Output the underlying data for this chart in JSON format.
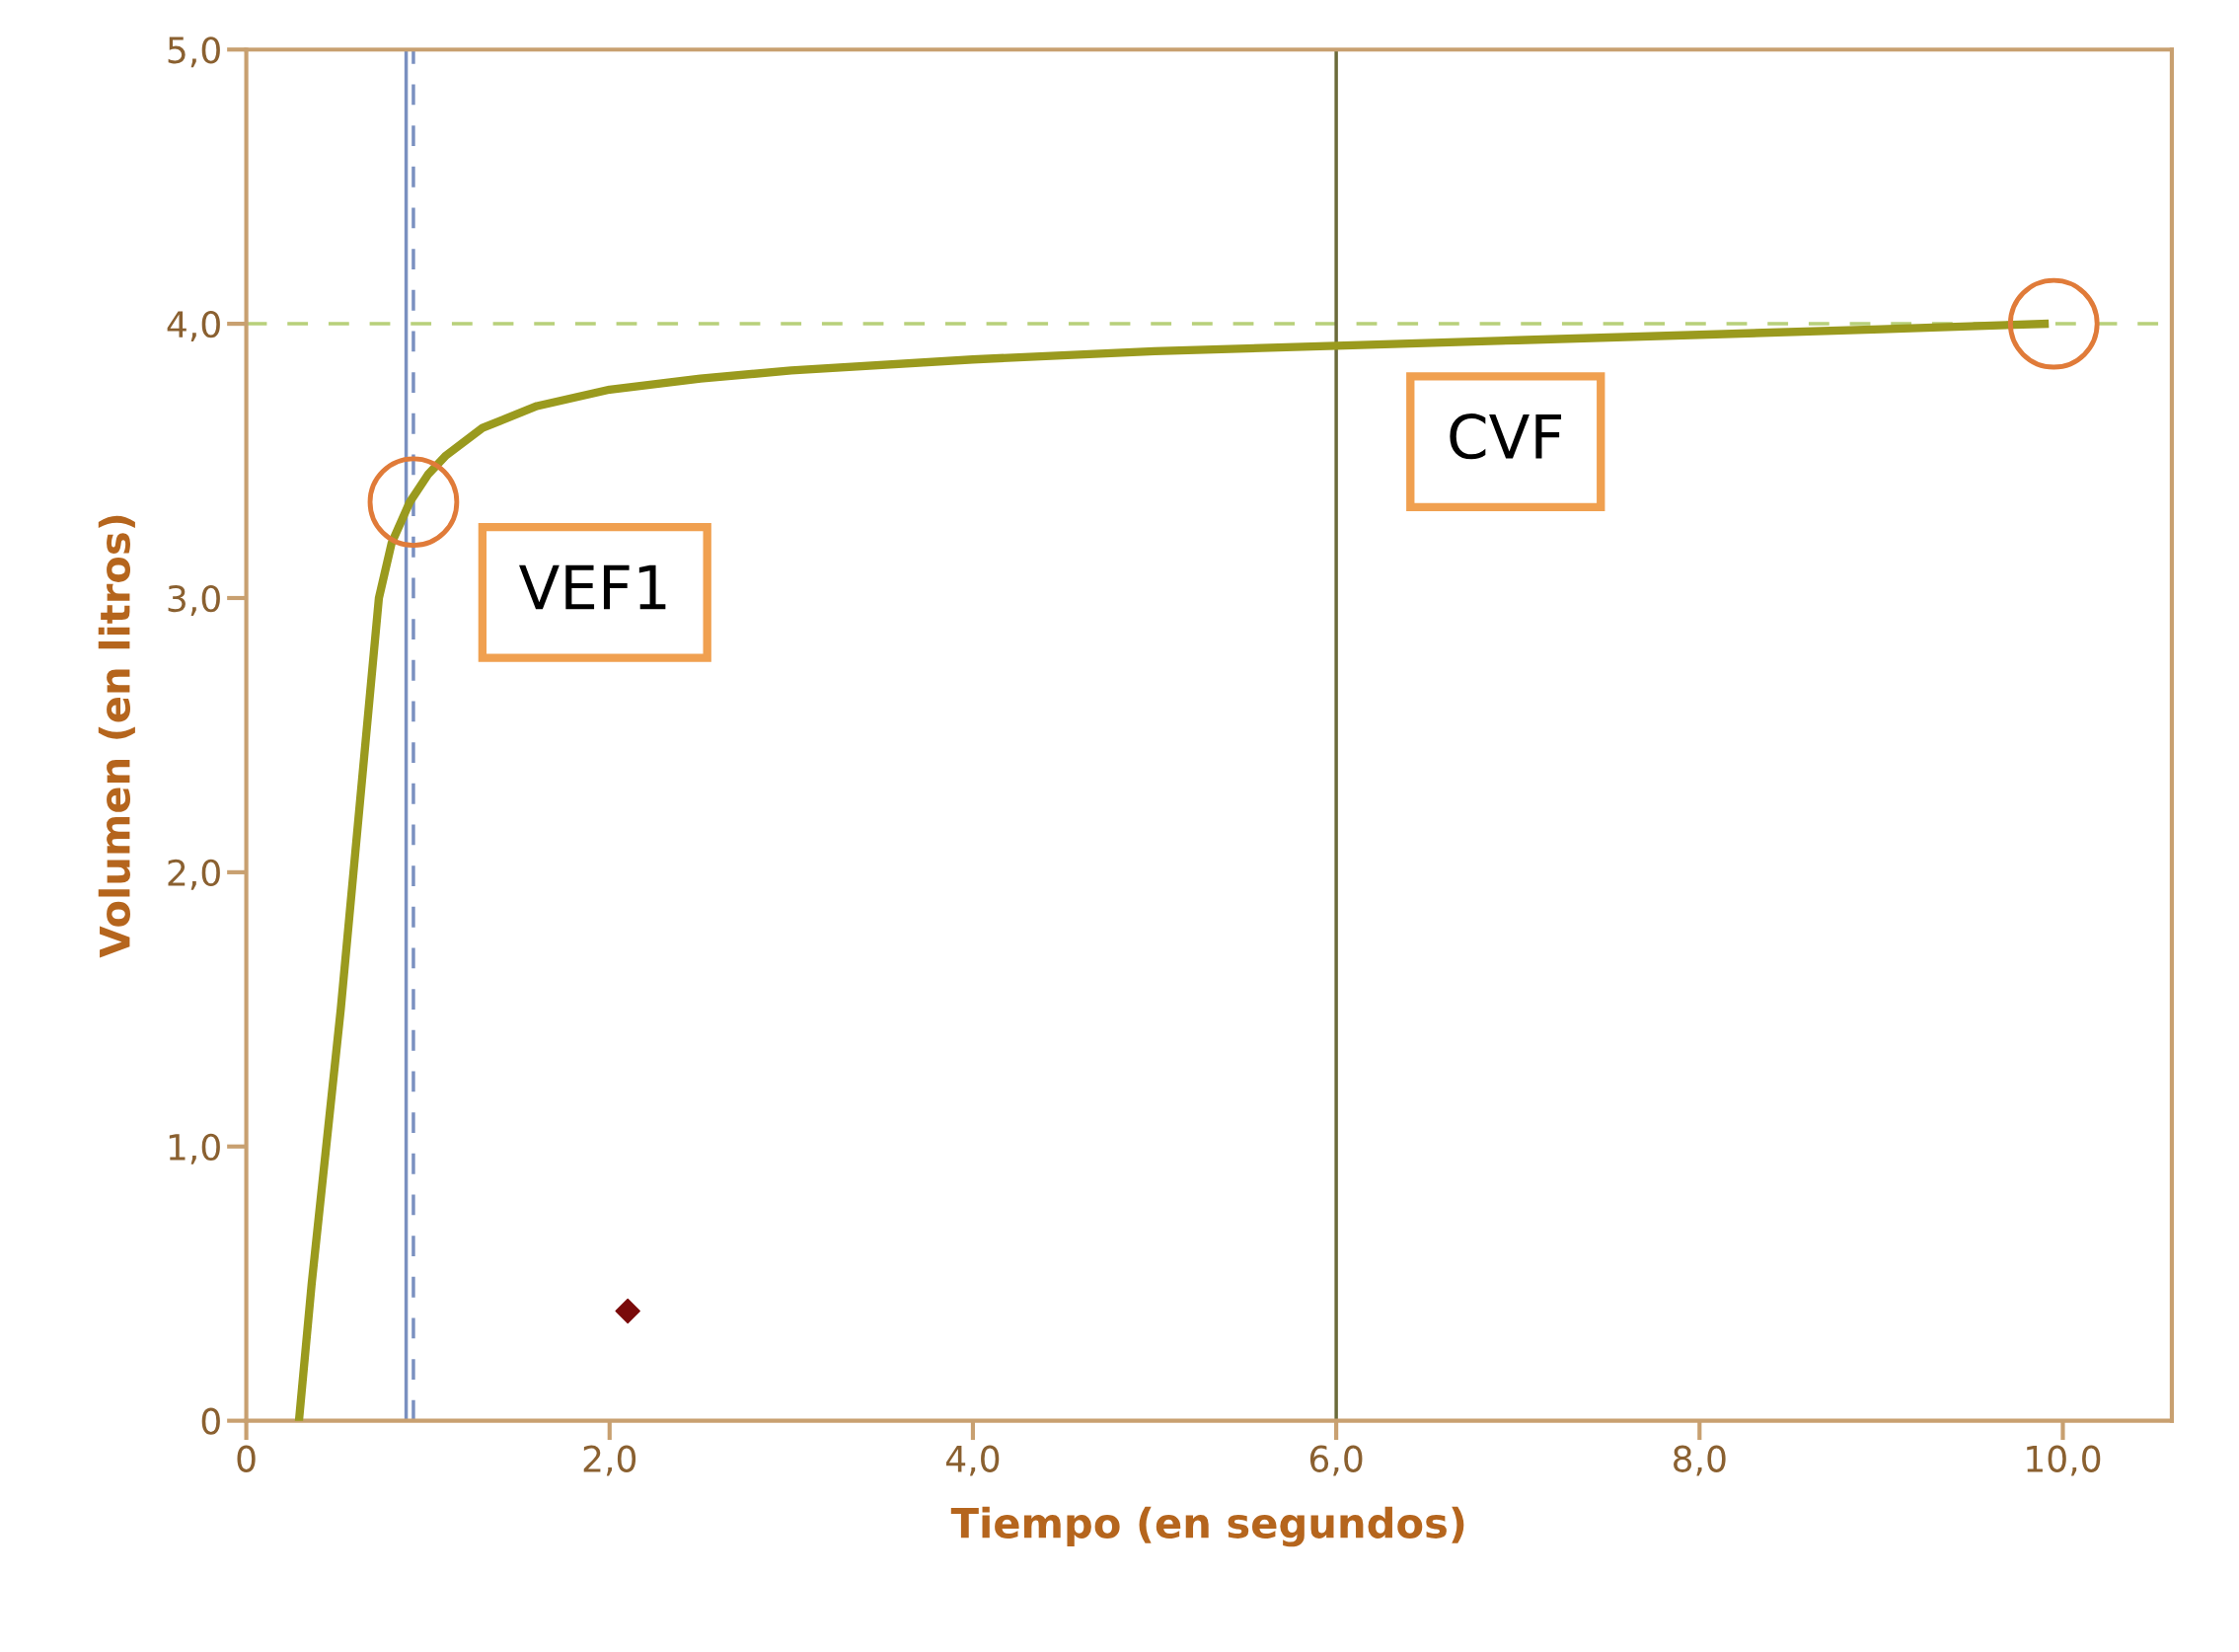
{
  "chart_data": {
    "type": "line",
    "xlabel": "Tiempo (en segundos)",
    "ylabel": "Volumen (en litros)",
    "xlim": [
      0,
      10.6
    ],
    "ylim": [
      0,
      5.0
    ],
    "xticks": [
      0,
      {
        "value": 2,
        "label": "2,0"
      },
      {
        "value": 4,
        "label": "4,0"
      },
      {
        "value": 6,
        "label": "6,0"
      },
      {
        "value": 8,
        "label": "8,0"
      },
      {
        "value": 10,
        "label": "10,0"
      }
    ],
    "yticks": [
      0,
      {
        "value": 1,
        "label": "1,0"
      },
      {
        "value": 2,
        "label": "2,0"
      },
      {
        "value": 3,
        "label": "3,0"
      },
      {
        "value": 4,
        "label": "4,0"
      },
      {
        "value": 5,
        "label": "5,0"
      }
    ],
    "grid": false,
    "legend": false,
    "series": [
      {
        "color": "#9a9a1e",
        "marker": "none",
        "line_style": "solid",
        "x": [
          0.29,
          0.36,
          0.44,
          0.52,
          0.59,
          0.66,
          0.73,
          0.8,
          0.9,
          1.0,
          1.1,
          1.3,
          1.6,
          2.0,
          2.5,
          3.0,
          4.0,
          5.0,
          6.0,
          7.0,
          8.0,
          9.0,
          9.9
        ],
        "values": [
          0,
          0.5,
          1.0,
          1.5,
          2.0,
          2.5,
          3.0,
          3.2,
          3.35,
          3.45,
          3.52,
          3.62,
          3.7,
          3.76,
          3.8,
          3.83,
          3.87,
          3.9,
          3.92,
          3.94,
          3.96,
          3.98,
          4.0
        ]
      },
      {
        "type": "scatter",
        "color": "#e07b39",
        "marker": "circle",
        "x": [
          0.92,
          9.95
        ],
        "values": [
          3.35,
          4.0
        ]
      },
      {
        "type": "scatter",
        "color": "#7a0a0a",
        "marker": "diamond",
        "x": [
          2.1
        ],
        "values": [
          0.4
        ]
      }
    ],
    "ref_lines": [
      {
        "axis": "y",
        "value": 4.0,
        "color": "#b8d07a",
        "line_style": "dashed"
      },
      {
        "axis": "x",
        "value": 0.88,
        "color": "#7a90c0",
        "line_style": "solid"
      },
      {
        "axis": "x",
        "value": 0.92,
        "color": "#7a90c0",
        "line_style": "dashed"
      },
      {
        "axis": "x",
        "value": 6.0,
        "color": "#6b6b3a",
        "line_style": "solid"
      }
    ],
    "annotations": [
      "VEF1",
      "CVF"
    ]
  }
}
